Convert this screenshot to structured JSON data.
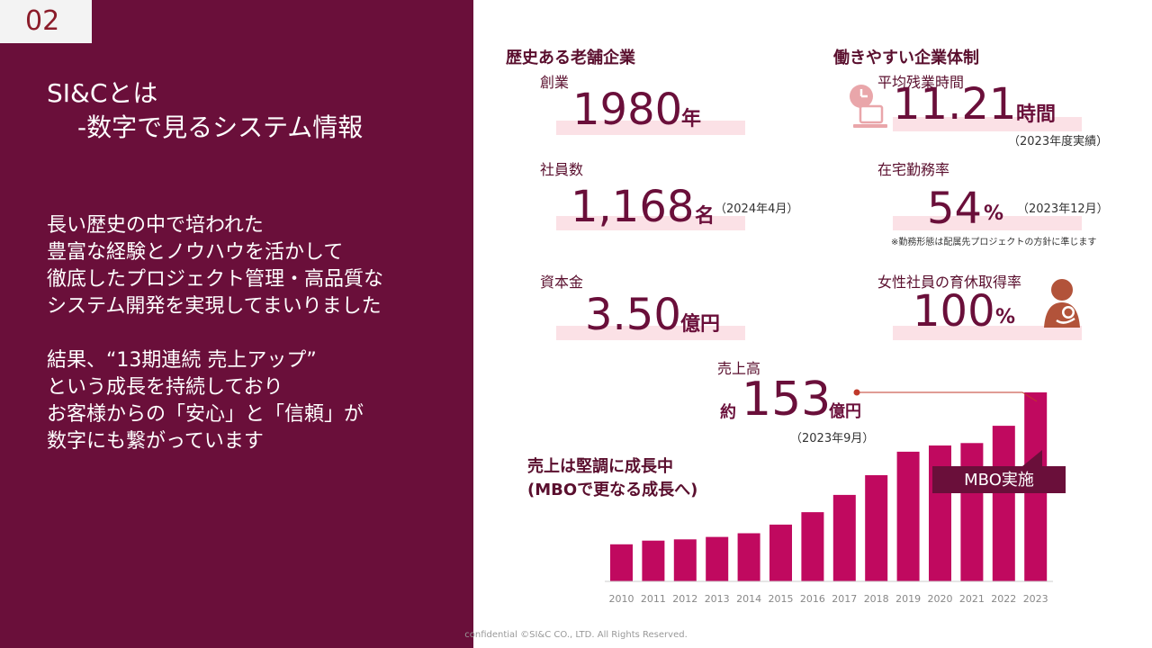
{
  "page_number": "02",
  "title": {
    "line1": "SI&Cとは",
    "line2": "-数字で見るシステム情報"
  },
  "body": [
    "長い歴史の中で培われた",
    "豊富な経験とノウハウを活かして",
    "徹底したプロジェクト管理・高品質な",
    "システム開発を実現してまいりました",
    "結果、“13期連続 売上アップ”",
    "という成長を持続しており",
    "お客様からの「安心」と「信頼」が",
    "数字にも繋がっています"
  ],
  "history": {
    "heading": "歴史ある老舗企業",
    "founding": {
      "label": "創業",
      "value": "1980",
      "unit": "年"
    },
    "employees": {
      "label": "社員数",
      "value": "1,168",
      "unit": "名",
      "note": "（2024年4月）"
    },
    "capital": {
      "label": "資本金",
      "value": "3.50",
      "unit": "億円"
    }
  },
  "workstyle": {
    "heading": "働きやすい企業体制",
    "overtime": {
      "label": "平均残業時間",
      "value": "11.21",
      "unit": "時間",
      "note": "（2023年度実績）",
      "icon": "clock-laptop-icon"
    },
    "remote": {
      "label": "在宅勤務率",
      "value": "54",
      "unit": "%",
      "note": "（2023年12月）",
      "footnote": "※勤務形態は配属先プロジェクトの方針に準じます"
    },
    "leave": {
      "label": "女性社員の育休取得率",
      "value": "100",
      "unit": "%",
      "icon": "mother-child-icon"
    }
  },
  "sales": {
    "label": "売上高",
    "prefix": "約",
    "value": "153",
    "unit": "億円",
    "note": "（2023年9月）",
    "growth_line1": "売上は堅調に成長中",
    "growth_line2": "(MBOで更なる成長へ)",
    "mbo_label": "MBO実施"
  },
  "colors": {
    "primary": "#6a0f3a",
    "bar": "#c0095f",
    "light_band": "#fbe1e6",
    "accent": "#c0392b"
  },
  "chart_data": {
    "type": "bar",
    "categories": [
      "2010",
      "2011",
      "2012",
      "2013",
      "2014",
      "2015",
      "2016",
      "2017",
      "2018",
      "2019",
      "2020",
      "2021",
      "2022",
      "2023"
    ],
    "values": [
      30,
      33,
      34,
      36,
      39,
      46,
      56,
      70,
      86,
      105,
      110,
      112,
      126,
      153
    ],
    "ylim": [
      0,
      160
    ],
    "grid": false
  },
  "footer": "confidential ©SI&C CO., LTD. All Rights Reserved."
}
